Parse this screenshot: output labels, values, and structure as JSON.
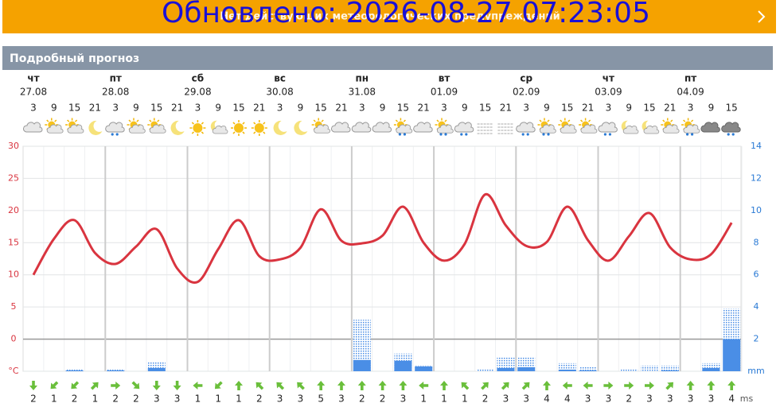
{
  "header": {
    "updated": "Обновлено: 2026-08-27 07:23:05",
    "warnings": "Нет действующих метеорологических предупреждений",
    "section_title": "Подробный прогноз"
  },
  "chart_data": {
    "type": "weather",
    "days": [
      {
        "name": "чт",
        "date": "27.08",
        "hours": [
          3,
          9,
          15,
          21
        ]
      },
      {
        "name": "пт",
        "date": "28.08",
        "hours": [
          3,
          9,
          15,
          21
        ]
      },
      {
        "name": "сб",
        "date": "29.08",
        "hours": [
          3,
          9,
          15,
          21
        ]
      },
      {
        "name": "вс",
        "date": "30.08",
        "hours": [
          3,
          9,
          15,
          21
        ]
      },
      {
        "name": "пн",
        "date": "31.08",
        "hours": [
          3,
          9,
          15,
          21
        ]
      },
      {
        "name": "вт",
        "date": "01.09",
        "hours": [
          3,
          9,
          15,
          21
        ]
      },
      {
        "name": "ср",
        "date": "02.09",
        "hours": [
          3,
          9,
          15,
          21
        ]
      },
      {
        "name": "чт",
        "date": "03.09",
        "hours": [
          3,
          9,
          15,
          21
        ]
      },
      {
        "name": "пт",
        "date": "04.09",
        "hours": [
          3,
          9,
          15
        ]
      }
    ],
    "conditions": [
      "cloud",
      "partly",
      "partly",
      "moon",
      "rain",
      "partly",
      "partly",
      "moon",
      "sun",
      "moon-cloud",
      "sun",
      "sun",
      "moon",
      "moon",
      "partly",
      "cloud",
      "cloud",
      "cloud",
      "sun-rain",
      "cloud",
      "sun-rain",
      "rain",
      "fog",
      "fog",
      "rain",
      "sun-rain",
      "partly",
      "partly",
      "rain",
      "moon-cloud",
      "moon-cloud",
      "partly",
      "sun-rain",
      "dark",
      "dark-rain"
    ],
    "temperature": {
      "color": "#d9343f",
      "values": [
        10,
        15.6,
        18.5,
        13.4,
        11.7,
        14.4,
        17.1,
        11,
        8.9,
        14,
        18.5,
        12.9,
        12.4,
        14.2,
        20.2,
        15.3,
        14.9,
        16.1,
        20.6,
        15,
        12.2,
        14.8,
        22.5,
        17.7,
        14.5,
        15.1,
        20.6,
        15.4,
        12.2,
        16,
        19.6,
        14.3,
        12.4,
        13.2,
        18.1
      ]
    },
    "ylim": [
      -5,
      30
    ],
    "yticks": [
      {
        "value": -5,
        "label": "°C"
      },
      0,
      5,
      10,
      15,
      20,
      25,
      30
    ],
    "y2lim": [
      0,
      14
    ],
    "y2ticks": [
      {
        "value": 0,
        "label": "mm"
      },
      2,
      4,
      6,
      8,
      10,
      12,
      14
    ],
    "precipitation": {
      "color": "#4a8ee6",
      "values": [
        0,
        0,
        0.05,
        0,
        0.05,
        0,
        0.2,
        0,
        0,
        0,
        0,
        0,
        0,
        0,
        0,
        0,
        0.7,
        0,
        0.65,
        0.3,
        0,
        0,
        0,
        0.2,
        0.25,
        0,
        0.1,
        0.05,
        0,
        0,
        0,
        0.05,
        0,
        0.2,
        2
      ],
      "max_values": [
        0,
        0,
        0.1,
        0,
        0.1,
        0,
        0.6,
        0,
        0,
        0,
        0,
        0,
        0,
        0,
        0,
        0,
        3.2,
        0,
        1.1,
        0.35,
        0,
        0,
        0.1,
        0.9,
        0.9,
        0,
        0.5,
        0.25,
        0,
        0.1,
        0.35,
        0.35,
        0,
        0.5,
        3.9
      ]
    },
    "wind": {
      "color": "#6abf3b",
      "unit": "ms",
      "speeds": [
        2,
        1,
        2,
        1,
        2,
        2,
        3,
        3,
        1,
        1,
        1,
        2,
        3,
        3,
        5,
        3,
        2,
        2,
        3,
        1,
        1,
        1,
        2,
        3,
        3,
        4,
        4,
        3,
        3,
        2,
        3,
        3,
        3,
        3,
        4
      ],
      "directions": [
        180,
        225,
        225,
        45,
        90,
        135,
        180,
        180,
        270,
        225,
        0,
        315,
        315,
        315,
        0,
        0,
        0,
        0,
        0,
        270,
        0,
        315,
        45,
        45,
        45,
        0,
        270,
        270,
        90,
        90,
        90,
        45,
        0,
        0,
        0
      ]
    }
  }
}
